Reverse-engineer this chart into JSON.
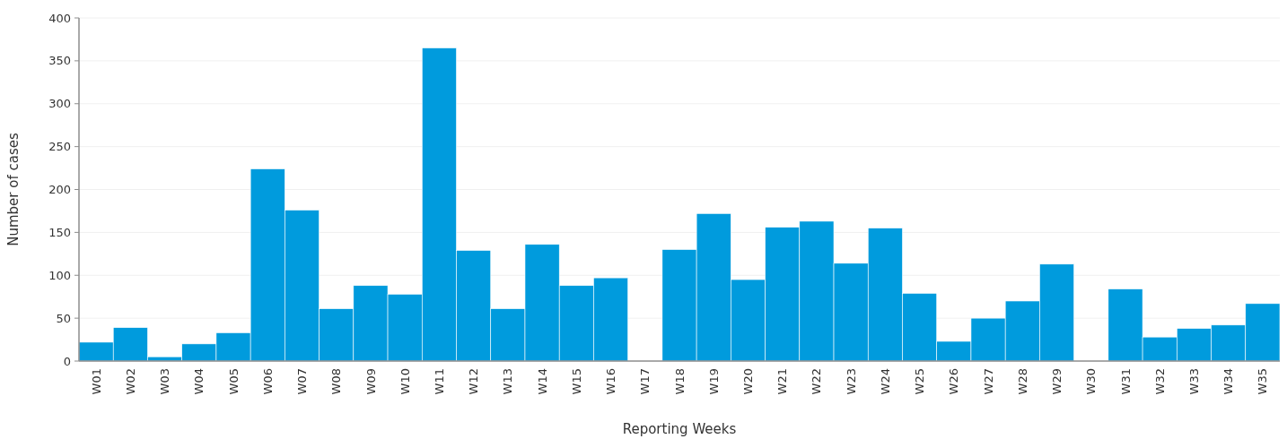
{
  "chart_data": {
    "type": "bar",
    "xlabel": "Reporting Weeks",
    "ylabel": "Number of cases",
    "categories": [
      "W01",
      "W02",
      "W03",
      "W04",
      "W05",
      "W06",
      "W07",
      "W08",
      "W09",
      "W10",
      "W11",
      "W12",
      "W13",
      "W14",
      "W15",
      "W16",
      "W17",
      "W18",
      "W19",
      "W20",
      "W21",
      "W22",
      "W23",
      "W24",
      "W25",
      "W26",
      "W27",
      "W28",
      "W29",
      "W30",
      "W31",
      "W32",
      "W33",
      "W34",
      "W35"
    ],
    "series": [
      {
        "color": "#009bdd",
        "values": [
          22,
          39,
          5,
          20,
          33,
          224,
          176,
          61,
          88,
          78,
          365,
          129,
          61,
          136,
          88,
          97,
          0,
          130,
          172,
          95,
          156,
          163,
          114,
          155,
          79,
          23,
          50,
          70,
          113,
          0,
          84,
          28,
          38,
          42,
          67
        ]
      }
    ],
    "ylim": [
      0,
      400
    ],
    "yticks": [
      0,
      50,
      100,
      150,
      200,
      250,
      300,
      350,
      400
    ],
    "grid": "y"
  }
}
